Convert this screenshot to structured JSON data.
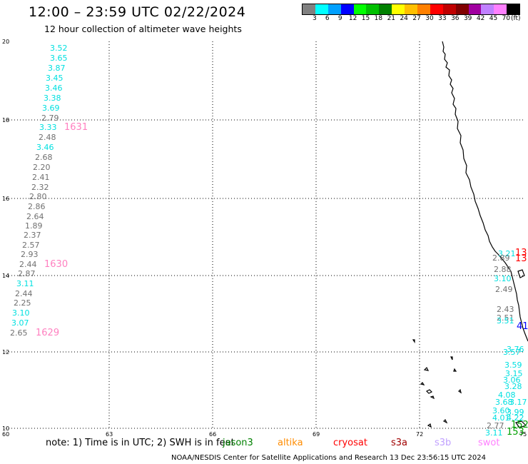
{
  "header": {
    "title": "12:00 – 23:59 UTC 02/22/2024",
    "subtitle": "12 hour collection of altimeter wave heights"
  },
  "colorbar": {
    "unit_label": "(ft)",
    "swatches": [
      "#808080",
      "#00ffff",
      "#00a0ff",
      "#0000ff",
      "#00ff00",
      "#00c000",
      "#008000",
      "#ffff00",
      "#ffc000",
      "#ff8000",
      "#ff0000",
      "#c00000",
      "#800000",
      "#a000a0",
      "#c080ff",
      "#ff80ff",
      "#000000"
    ],
    "labels": [
      "3",
      "6",
      "9",
      "12",
      "15",
      "18",
      "21",
      "24",
      "27",
      "30",
      "33",
      "36",
      "39",
      "42",
      "45",
      "70"
    ]
  },
  "map": {
    "lat_ticks": [
      "20",
      "18",
      "16",
      "14",
      "12",
      "10"
    ],
    "lon_ticks": [
      "60",
      "63",
      "66",
      "69",
      "72",
      "75"
    ],
    "coast_color": "#000000",
    "grid": "dotted"
  },
  "wave_labels": [
    {
      "text": "3.52",
      "color": "#00e0e0"
    },
    {
      "text": "3.65",
      "color": "#00e0e0"
    },
    {
      "text": "3.87",
      "color": "#00e0e0"
    },
    {
      "text": "3.45",
      "color": "#00e0e0"
    },
    {
      "text": "3.46",
      "color": "#00e0e0"
    },
    {
      "text": "3.38",
      "color": "#00e0e0"
    },
    {
      "text": "3.69",
      "color": "#00e0e0"
    },
    {
      "text": "2.79",
      "color": "#707070"
    },
    {
      "text": "3.33",
      "color": "#00e0e0"
    },
    {
      "text": "2.48",
      "color": "#707070"
    },
    {
      "text": "3.46",
      "color": "#00e0e0"
    },
    {
      "text": "2.68",
      "color": "#707070"
    },
    {
      "text": "2.20",
      "color": "#707070"
    },
    {
      "text": "2.41",
      "color": "#707070"
    },
    {
      "text": "2.32",
      "color": "#707070"
    },
    {
      "text": "2.80",
      "color": "#707070"
    },
    {
      "text": "2.86",
      "color": "#707070"
    },
    {
      "text": "2.64",
      "color": "#707070"
    },
    {
      "text": "1.89",
      "color": "#707070"
    },
    {
      "text": "2.37",
      "color": "#707070"
    },
    {
      "text": "2.57",
      "color": "#707070"
    },
    {
      "text": "2.93",
      "color": "#707070"
    },
    {
      "text": "2.44",
      "color": "#707070"
    },
    {
      "text": "2.87",
      "color": "#707070"
    },
    {
      "text": "3.11",
      "color": "#00e0e0"
    },
    {
      "text": "2.44",
      "color": "#707070"
    },
    {
      "text": "2.25",
      "color": "#707070"
    },
    {
      "text": "3.10",
      "color": "#00e0e0"
    },
    {
      "text": "3.07",
      "color": "#00e0e0"
    },
    {
      "text": "2.65",
      "color": "#707070"
    },
    {
      "text": "3.21",
      "color": "#00e0e0"
    },
    {
      "text": "2.89",
      "color": "#707070"
    },
    {
      "text": "2.88",
      "color": "#707070"
    },
    {
      "text": "3.10",
      "color": "#00e0e0"
    },
    {
      "text": "2.49",
      "color": "#707070"
    },
    {
      "text": "2.43",
      "color": "#707070"
    },
    {
      "text": "2.51",
      "color": "#707070"
    },
    {
      "text": "3.51",
      "color": "#00e0e0"
    },
    {
      "text": "3.76",
      "color": "#00e0e0"
    },
    {
      "text": "3.57",
      "color": "#00e0e0"
    },
    {
      "text": "3.59",
      "color": "#00e0e0"
    },
    {
      "text": "3.15",
      "color": "#00e0e0"
    },
    {
      "text": "3.06",
      "color": "#00e0e0"
    },
    {
      "text": "3.28",
      "color": "#00e0e0"
    },
    {
      "text": "4.08",
      "color": "#00e0e0"
    },
    {
      "text": "3.68",
      "color": "#00e0e0"
    },
    {
      "text": "3.17",
      "color": "#00e0e0"
    },
    {
      "text": "3.60",
      "color": "#00e0e0"
    },
    {
      "text": "3.99",
      "color": "#00e0e0"
    },
    {
      "text": "4.01",
      "color": "#00e0e0"
    },
    {
      "text": "4.22",
      "color": "#00e0e0"
    },
    {
      "text": "2.77",
      "color": "#707070"
    },
    {
      "text": "3.11",
      "color": "#00e0e0"
    },
    {
      "text": "1631",
      "color": "#ff80c0"
    },
    {
      "text": "1630",
      "color": "#ff80c0"
    },
    {
      "text": "1629",
      "color": "#ff80c0"
    },
    {
      "text": "13",
      "color": "#ff0000"
    },
    {
      "text": "13",
      "color": "#ff0000"
    },
    {
      "text": "152",
      "color": "#00a000"
    },
    {
      "text": "153",
      "color": "#00a000"
    },
    {
      "text": "41",
      "color": "#0000ff"
    }
  ],
  "footer": {
    "note": "note:  1) Time is in UTC;  2) SWH is in feet",
    "satellites": [
      {
        "name": "jason3",
        "color": "#008000"
      },
      {
        "name": "altika",
        "color": "#ff8c00"
      },
      {
        "name": "cryosat",
        "color": "#ff0000"
      },
      {
        "name": "s3a",
        "color": "#a00000"
      },
      {
        "name": "s3b",
        "color": "#c0a0ff"
      },
      {
        "name": "swot",
        "color": "#ff80ff"
      }
    ],
    "credit": "NOAA/NESDIS Center for Satellite Applications and Research    13 Dec 23:56:15 UTC 2024"
  }
}
